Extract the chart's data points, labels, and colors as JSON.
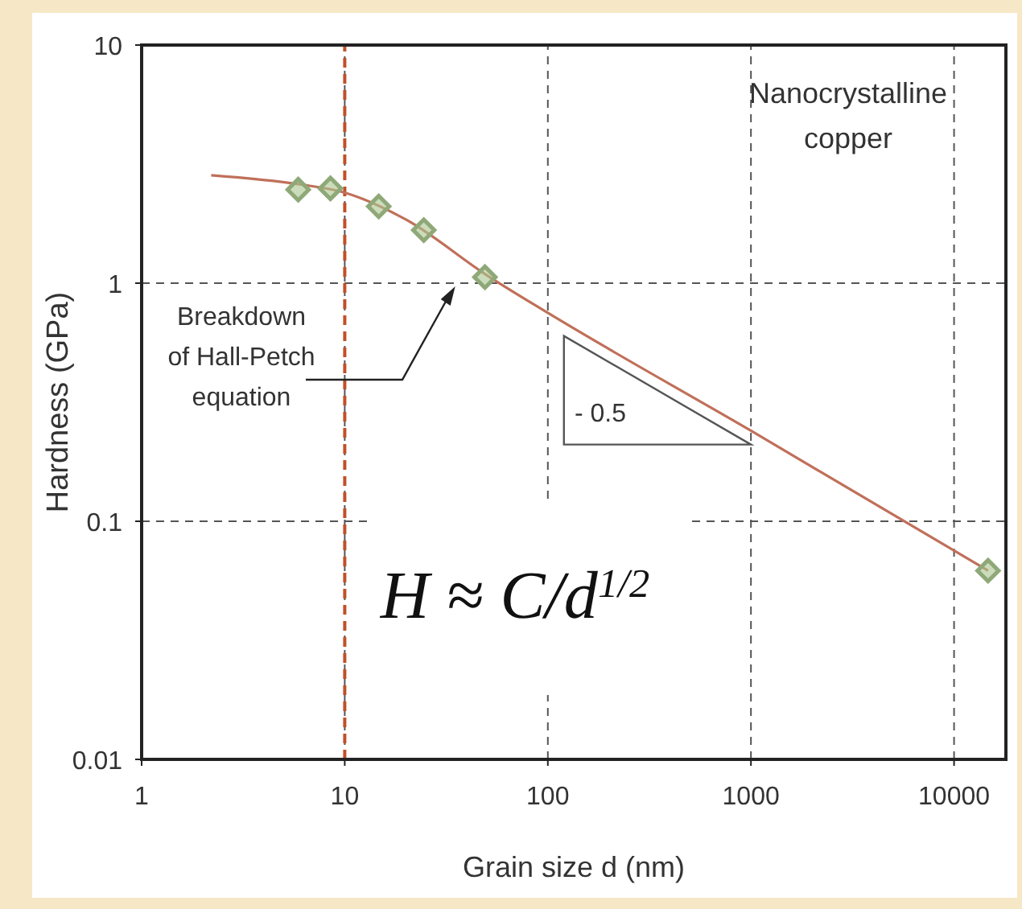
{
  "chart_data": {
    "type": "line",
    "xlabel": "Grain size d (nm)",
    "ylabel": "Hardness (GPa)",
    "log": "xy",
    "xlim": [
      1,
      18000
    ],
    "xticks": [
      1,
      10,
      100,
      1000,
      10000
    ],
    "ylim": [
      0.01,
      10
    ],
    "yticks": [
      0.01,
      0.1,
      1,
      10
    ],
    "grid": true,
    "series": [
      {
        "type": "line",
        "color": "#c0705a",
        "marker": "none",
        "x": [
          2.2,
          6,
          10,
          20,
          50,
          100,
          1000,
          14700
        ],
        "values": [
          2.84,
          2.6,
          2.4,
          1.85,
          1.08,
          0.75,
          0.24,
          0.062
        ]
      },
      {
        "type": "scatter",
        "color": "#a9c48e",
        "marker": "diamond",
        "x": [
          5.9,
          8.5,
          14.7,
          24.5,
          49,
          14700
        ],
        "values": [
          2.47,
          2.5,
          2.1,
          1.67,
          1.06,
          0.062
        ]
      }
    ],
    "ref_lines": [
      {
        "axis": "x",
        "value": 10,
        "color": "#c0502a",
        "line_style": "dashed"
      }
    ],
    "annotations": [
      "Breakdown of Hall-Petch equation",
      "Nanocrystalline copper",
      "- 0.5",
      "H ≈ C/d$^{1/2}$"
    ]
  }
}
